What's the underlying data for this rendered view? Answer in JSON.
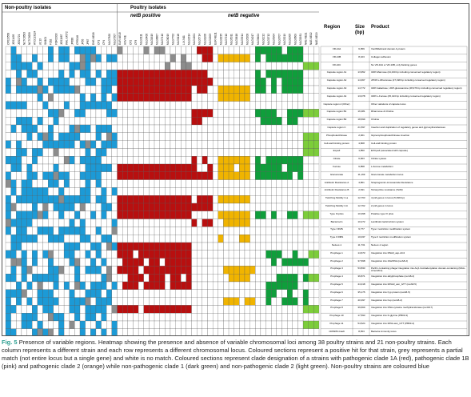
{
  "header": {
    "non_poultry": "Non-poultry isolates",
    "poultry": "Poultry isolates",
    "netb_positive": "netB positive",
    "netb_negative": "netB negative"
  },
  "table_headers": {
    "region": "Region",
    "size": "Size (bp)",
    "product": "Product"
  },
  "strain_names": [
    "CP023558",
    "JGS1495",
    "JGS1721",
    "NCTC8503",
    "NCTC8239",
    "ATCC13124",
    "str.13",
    "SM101",
    "F262",
    "FORC003",
    "JGS1987",
    "WAL-14572",
    "JP838",
    "CPE048",
    "JP55",
    "JP67",
    "EHE-NE18",
    "CP1",
    "CP4",
    "MLG7820",
    "MLG7307",
    "EUR-NE15",
    "HSV-NE",
    "CP2",
    "CP3",
    "MLG3111",
    "MLG3406",
    "MLG1619",
    "MLG6807",
    "MLG7410",
    "MLG6019",
    "MLG7702",
    "MLG0118",
    "LLY-N11",
    "MLG2314",
    "MLG4201",
    "MLG5714",
    "MLG1108",
    "MLG2203",
    "EUR-NE11",
    "MLG0235",
    "MLG7210",
    "MLG5011",
    "MLG0618",
    "MLG3914",
    "MLG5208",
    "MLG4017",
    "MLG8404",
    "MLG1212",
    "MLG0712",
    "MLG5904",
    "MLG3707",
    "MLG5219",
    "MLG1305",
    "MLG3609",
    "MLG0931",
    "NAE-NE11",
    "NAE-NE12",
    "NAE-NE19"
  ],
  "colors": {
    "present": "#1c9ad6",
    "clade1a": "#b80f0f",
    "clade2": "#f0b400",
    "np_clade1": "#0f9e3b",
    "np_clade2": "#7ccd3a",
    "partial": "#8c8c8c",
    "absent": "#ffffff"
  },
  "rows": [
    {
      "region": "VR-10A",
      "size": "6,059",
      "product": "VonWillebrand domain A protein"
    },
    {
      "region": "VR-10B",
      "size": "8,103",
      "product": "Collagen adhesion"
    },
    {
      "region": "VR-10C",
      "size": "",
      "product": "No VR-10A or VR-10B, only flanking genes"
    },
    {
      "region": "Capsule region A1",
      "size": "13,952",
      "product": "UDP-Mannose (24,230 bp including conserved regulatory region)"
    },
    {
      "region": "Capsule region A2",
      "size": "14,367",
      "product": "dTDP-L-Rhamnose (27,198 bp including conserved regulatory region)"
    },
    {
      "region": "Capsule region A3",
      "size": "14,772",
      "product": "UDP-Galactose, UDP-glucosamine (28,976 bp including conserved regulatory region)"
    },
    {
      "region": "Capsule region A4",
      "size": "13,078",
      "product": "UDP-L-Fucose (25,413 bp including conserved regulatory region)"
    },
    {
      "region": "Capsule region A (Other)",
      "size": "",
      "product": "Other variations of capsule locus"
    },
    {
      "region": "Capsule region B1",
      "size": "16,381",
      "product": "Rhamnose & Choline"
    },
    {
      "region": "Capsule region B2",
      "size": "18,699",
      "product": "Choline"
    },
    {
      "region": "Capsule region C",
      "size": "21,597",
      "product": "Insertion and duplication of regulatory genes and glycosyltransferases"
    },
    {
      "region": "Phospholecithinase",
      "size": "2,001",
      "product": "Glycerophospholecithinase insertion"
    },
    {
      "region": "Cell-wall binding protein",
      "size": "4,808",
      "product": "Cell-wall binding protein"
    },
    {
      "region": "ExpeZ",
      "size": "1,850",
      "product": "EXCpeZ (associated with capsule)"
    },
    {
      "region": "Citrate",
      "size": "6,663",
      "product": "Citrate Lyases"
    },
    {
      "region": "Fucose",
      "size": "6,858",
      "product": "L-fucose metabolism"
    },
    {
      "region": "Glucuronate",
      "size": "11,169",
      "product": "Glucuronate metabolism locus"
    },
    {
      "region": "Antibiotic Resistance A",
      "size": "4,861",
      "product": "Streptogramin-Lincosamide Resistance"
    },
    {
      "region": "Antibiotic Resistance B",
      "size": "2,631",
      "product": "Tetracycline resistance (TetM)"
    },
    {
      "region": "Twitching Motility C-a",
      "size": "12,763",
      "product": "4 pilA genes in locus (5,399 bp)"
    },
    {
      "region": "Twitching Motility C-b",
      "size": "12,762",
      "product": "2 pilA genes in locus"
    },
    {
      "region": "Type IV-pilus",
      "size": "10,398",
      "product": "Putative type IV pilus"
    },
    {
      "region": "Bacteriocin",
      "size": "10,272",
      "product": "Lantibiotic lacticin/nisin system"
    },
    {
      "region": "Type I RMS",
      "size": "9,777",
      "product": "Type I restriction modification system"
    },
    {
      "region": "Type II RMS",
      "size": "10,037",
      "product": "Type II restriction modification system"
    },
    {
      "region": "NetLoc-1",
      "size": "11,731",
      "product": "NetLoc-1 region"
    },
    {
      "region": "Prophage 1",
      "size": "14,673",
      "product": "Integration into RNA3_asp-AC4"
    },
    {
      "region": "Prophage 2",
      "size": "37,698",
      "product": "Integration into 23srRNA (recA8-2)"
    },
    {
      "region": "Prophage 3",
      "size": "53,833",
      "product": "Perfrin containing phage/ integration into Acyl-CoA/adenylation domain-containing (MAA-A/recA8-3)"
    },
    {
      "region": "Prophage 4",
      "size": "36,871",
      "product": "Integration into alkylphosphate (recA8-4)"
    },
    {
      "region": "Prophage 5",
      "size": "44,318",
      "product": "Integration into tRNA3_asn_GTT (recA8-5)"
    },
    {
      "region": "Prophage 6",
      "size": "35,175",
      "product": "Integration into hyp protein (recA8-5)"
    },
    {
      "region": "Prophage 7",
      "size": "40,397",
      "product": "Integration into hup (recA8-2)"
    },
    {
      "region": "Prophage 8",
      "size": "39,660",
      "product": "Integration into DNA-cytosine methyltransferase (recA8-7)"
    },
    {
      "region": "Prophage 10",
      "size": "17,593",
      "product": "Integration into D-glycine (PB03-3)"
    },
    {
      "region": "Prophage 11",
      "size": "54,524",
      "product": "Integration into tRNA-asn_GTT (PB03-2)"
    },
    {
      "region": "CRISPR-Cas9",
      "size": "8,653",
      "product": "Bacteria immunity locus"
    }
  ],
  "caption": {
    "label": "Fig. 5",
    "text": "Presence of variable regions. Heatmap showing the presence and absence of variable chromosomal loci among 38 poultry strains and 21 non-poultry strains. Each column represents a different strain and each row represents a different chromosomal locus. Coloured sections represent a positive hit for that strain, grey represents a partial match (not entire locus but a single gene) and white is no match. Coloured sections represent clade designation of a strains with pathogenic clade 1A (red), pathogenic clade 1B (pink) and pathogenic clade 2 (orange) while non-pathogenic clade 1 (dark green) and non-pathogenic clade 2 (light green). Non-poultry strains are coloured blue"
  }
}
